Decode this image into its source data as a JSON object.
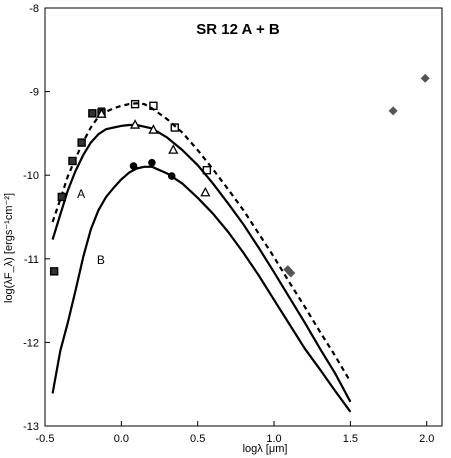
{
  "chart_data": {
    "type": "line",
    "title": "SR 12 A + B",
    "xlabel": "logλ [μm]",
    "ylabel": "log(λF_λ) [ergs⁻¹cm⁻²]",
    "xlim": [
      -0.5,
      2.1
    ],
    "ylim": [
      -13,
      -8
    ],
    "x_ticks": [
      -0.5,
      0.0,
      0.5,
      1.0,
      1.5,
      2.0
    ],
    "x_tick_labels": [
      "-0.5",
      "0.0",
      "0.5",
      "1.0",
      "1.5",
      "2.0"
    ],
    "y_ticks": [
      -13,
      -12,
      -11,
      -10,
      -9,
      -8
    ],
    "y_tick_labels": [
      "-13",
      "-12",
      "-11",
      "-10",
      "-9",
      "-8"
    ],
    "grid": false,
    "legend": "none",
    "curve_labels": [
      {
        "text": "A",
        "x": -0.29,
        "y": -10.27
      },
      {
        "text": "B",
        "x": -0.16,
        "y": -11.06
      }
    ],
    "series": [
      {
        "style": "dashed",
        "color": "#000000",
        "x": [
          -0.45,
          -0.4,
          -0.35,
          -0.3,
          -0.25,
          -0.2,
          -0.15,
          -0.1,
          -0.05,
          0.0,
          0.05,
          0.1,
          0.15,
          0.2,
          0.3,
          0.4,
          0.5,
          0.6,
          0.7,
          0.8,
          0.9,
          1.0,
          1.1,
          1.2,
          1.3,
          1.4,
          1.5
        ],
        "y": [
          -10.56,
          -10.29,
          -10.01,
          -9.8,
          -9.6,
          -9.43,
          -9.3,
          -9.24,
          -9.2,
          -9.17,
          -9.15,
          -9.14,
          -9.15,
          -9.2,
          -9.33,
          -9.49,
          -9.7,
          -9.93,
          -10.17,
          -10.42,
          -10.7,
          -10.98,
          -11.28,
          -11.57,
          -11.87,
          -12.16,
          -12.47
        ]
      },
      {
        "style": "solid",
        "color": "#000000",
        "x": [
          -0.45,
          -0.4,
          -0.35,
          -0.3,
          -0.25,
          -0.2,
          -0.15,
          -0.1,
          -0.05,
          0.0,
          0.05,
          0.1,
          0.15,
          0.2,
          0.3,
          0.4,
          0.5,
          0.6,
          0.7,
          0.8,
          0.9,
          1.0,
          1.1,
          1.2,
          1.3,
          1.4,
          1.5
        ],
        "y": [
          -10.77,
          -10.47,
          -10.18,
          -9.95,
          -9.76,
          -9.61,
          -9.51,
          -9.45,
          -9.43,
          -9.41,
          -9.4,
          -9.4,
          -9.42,
          -9.44,
          -9.55,
          -9.7,
          -9.88,
          -10.1,
          -10.34,
          -10.59,
          -10.87,
          -11.16,
          -11.46,
          -11.76,
          -12.07,
          -12.37,
          -12.71
        ]
      },
      {
        "style": "solid",
        "color": "#000000",
        "x": [
          -0.45,
          -0.4,
          -0.35,
          -0.3,
          -0.25,
          -0.2,
          -0.15,
          -0.1,
          -0.05,
          0.0,
          0.05,
          0.1,
          0.15,
          0.2,
          0.3,
          0.4,
          0.5,
          0.6,
          0.7,
          0.8,
          0.9,
          1.0,
          1.1,
          1.2,
          1.3,
          1.4,
          1.5
        ],
        "y": [
          -12.61,
          -12.1,
          -11.76,
          -11.38,
          -10.98,
          -10.65,
          -10.42,
          -10.26,
          -10.15,
          -10.05,
          -9.97,
          -9.92,
          -9.9,
          -9.9,
          -9.98,
          -10.1,
          -10.27,
          -10.46,
          -10.68,
          -10.93,
          -11.2,
          -11.49,
          -11.78,
          -12.07,
          -12.32,
          -12.58,
          -12.83
        ]
      }
    ],
    "points": [
      {
        "marker": "square-filled",
        "color": "#333333",
        "x": [
          -0.44,
          -0.39,
          -0.32,
          -0.26,
          -0.19,
          -0.13
        ],
        "y": [
          -11.15,
          -10.26,
          -9.83,
          -9.61,
          -9.26,
          -9.23
        ]
      },
      {
        "marker": "square-open",
        "color": "#000000",
        "x": [
          -0.44,
          -0.39,
          -0.32,
          -0.26,
          -0.19,
          -0.13,
          0.09,
          0.21,
          0.35,
          0.56
        ],
        "y": [
          -11.15,
          -10.26,
          -9.83,
          -9.61,
          -9.26,
          -9.25,
          -9.15,
          -9.17,
          -9.43,
          -9.94
        ]
      },
      {
        "marker": "triangle-open",
        "color": "#000000",
        "x": [
          -0.13,
          0.09,
          0.21,
          0.34,
          0.55
        ],
        "y": [
          -9.27,
          -9.4,
          -9.46,
          -9.7,
          -10.21
        ]
      },
      {
        "marker": "circle-filled",
        "color": "#000000",
        "x": [
          0.08,
          0.2,
          0.33
        ],
        "y": [
          -9.89,
          -9.85,
          -10.01
        ]
      },
      {
        "marker": "diamond-filled",
        "color": "#555555",
        "x": [
          1.09,
          1.11,
          1.78,
          1.99
        ],
        "y": [
          -11.13,
          -11.17,
          -9.23,
          -8.84
        ]
      }
    ]
  }
}
